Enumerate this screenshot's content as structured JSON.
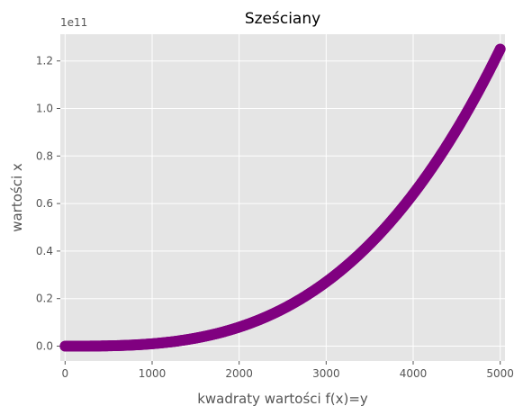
{
  "chart_data": {
    "type": "scatter",
    "title": "Sześciany",
    "xlabel": "kwadraty wartości f(x)=y",
    "ylabel": "wartości x",
    "offset_text": "1e11",
    "xlim": [
      -55,
      5055
    ],
    "ylim": [
      -0.0625,
      1.3125
    ],
    "xticks": [
      0,
      1000,
      2000,
      3000,
      4000,
      5000
    ],
    "xtick_labels": [
      "0",
      "1000",
      "2000",
      "3000",
      "4000",
      "5000"
    ],
    "yticks": [
      0.0,
      0.2,
      0.4,
      0.6,
      0.8,
      1.0,
      1.2
    ],
    "ytick_labels": [
      "0.0",
      "0.2",
      "0.4",
      "0.6",
      "0.8",
      "1.0",
      "1.2"
    ],
    "grid": true,
    "style": "ggplot",
    "background_color": "#e5e5e5",
    "grid_color": "#ffffff",
    "series": [
      {
        "color": "#800080",
        "x_range": [
          0,
          5000
        ],
        "relation": "y = x^3",
        "y_scale": "1e11",
        "x": [
          0,
          250,
          500,
          750,
          1000,
          1250,
          1500,
          1750,
          2000,
          2250,
          2500,
          2750,
          3000,
          3250,
          3500,
          3750,
          4000,
          4250,
          4500,
          4750,
          5000
        ],
        "y": [
          0.0,
          0.00016,
          0.00125,
          0.00422,
          0.01,
          0.01953,
          0.03375,
          0.05359,
          0.08,
          0.11391,
          0.15625,
          0.20797,
          0.27,
          0.34328,
          0.42875,
          0.52734,
          0.64,
          0.76766,
          0.91125,
          1.07172,
          1.25
        ]
      }
    ]
  }
}
